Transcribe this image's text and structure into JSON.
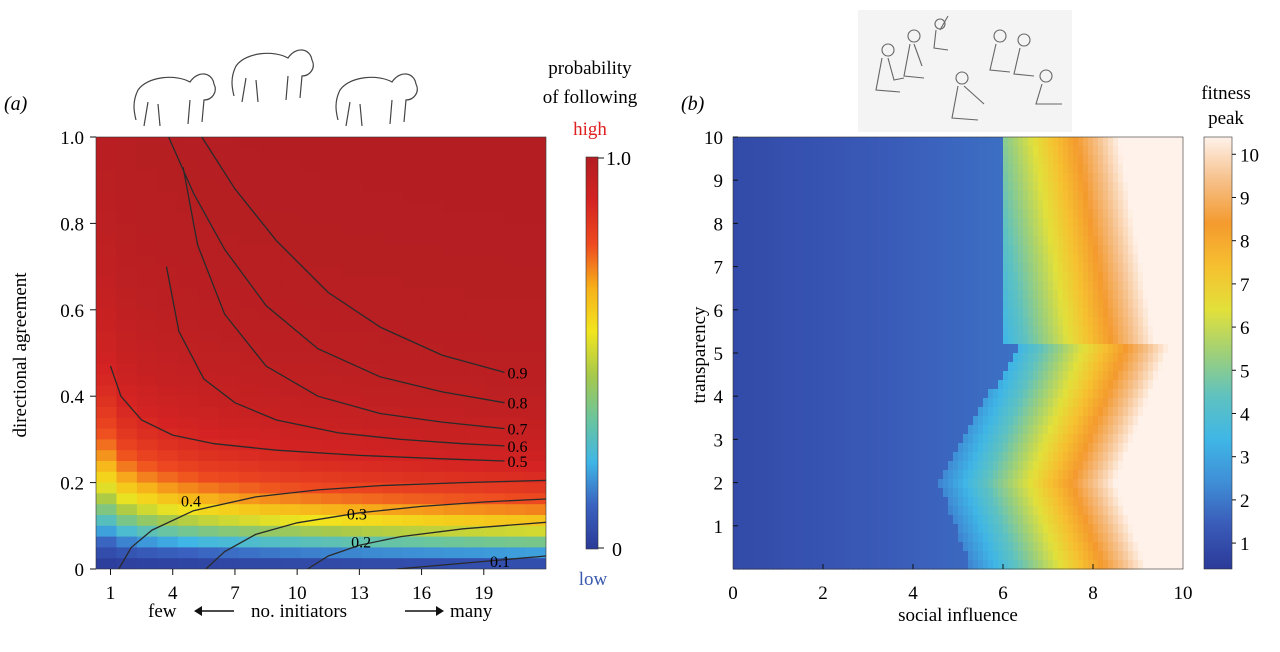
{
  "chart_data": [
    {
      "type": "heatmap",
      "panel_label": "(a)",
      "xlabel": "no. initiators",
      "xlabel_left": "few",
      "xlabel_right": "many",
      "ylabel": "directional agreement",
      "xlim": [
        0.3,
        22
      ],
      "ylim": [
        0,
        1
      ],
      "xticks": [
        1,
        4,
        7,
        10,
        13,
        16,
        19
      ],
      "yticks": [
        0,
        0.2,
        0.4,
        0.6,
        0.8,
        1.0
      ],
      "grid_columns": 22,
      "colorbar": {
        "title_line1": "probability",
        "title_line2": "of following",
        "high_label": "high",
        "low_label": "low",
        "max_label": "1.0",
        "min_label": "0",
        "range": [
          0,
          1
        ],
        "colors": [
          "#2b3a98",
          "#3a62c0",
          "#3fb6e6",
          "#6cc59c",
          "#a8c94a",
          "#f2e51e",
          "#f7b01a",
          "#ee4a20",
          "#d42322",
          "#b21e22"
        ],
        "high_color": "#e02020",
        "low_color": "#3a5ab0"
      },
      "contours": [
        {
          "level": 0.1,
          "label": "0.1",
          "points": [
            [
              14.8,
              0
            ],
            [
              22,
              0.03
            ]
          ]
        },
        {
          "level": 0.2,
          "label": "0.2",
          "points": [
            [
              10.5,
              0
            ],
            [
              11.5,
              0.03
            ],
            [
              13,
              0.055
            ],
            [
              15,
              0.075
            ],
            [
              18,
              0.093
            ],
            [
              22,
              0.108
            ]
          ]
        },
        {
          "level": 0.3,
          "label": "0.3",
          "points": [
            [
              5.6,
              0
            ],
            [
              6.5,
              0.04
            ],
            [
              8,
              0.08
            ],
            [
              10,
              0.107
            ],
            [
              13,
              0.13
            ],
            [
              16,
              0.145
            ],
            [
              19,
              0.155
            ],
            [
              22,
              0.162
            ]
          ]
        },
        {
          "level": 0.4,
          "label": "0.4",
          "points": [
            [
              1.4,
              0
            ],
            [
              2,
              0.05
            ],
            [
              3,
              0.09
            ],
            [
              5,
              0.135
            ],
            [
              8,
              0.167
            ],
            [
              11,
              0.183
            ],
            [
              14,
              0.193
            ],
            [
              18,
              0.2
            ],
            [
              22,
              0.205
            ]
          ]
        },
        {
          "level": 0.5,
          "label": "0.5",
          "points": [
            [
              1,
              0.47
            ],
            [
              1.5,
              0.4
            ],
            [
              2.5,
              0.345
            ],
            [
              4,
              0.31
            ],
            [
              6,
              0.29
            ],
            [
              9,
              0.275
            ],
            [
              13,
              0.263
            ],
            [
              17,
              0.255
            ],
            [
              20,
              0.25
            ]
          ]
        },
        {
          "level": 0.6,
          "label": "0.6",
          "points": [
            [
              3.7,
              0.7
            ],
            [
              4.3,
              0.55
            ],
            [
              5.5,
              0.44
            ],
            [
              7,
              0.385
            ],
            [
              9,
              0.345
            ],
            [
              12,
              0.315
            ],
            [
              15,
              0.3
            ],
            [
              18,
              0.29
            ],
            [
              20,
              0.285
            ]
          ]
        },
        {
          "level": 0.7,
          "label": "0.7",
          "points": [
            [
              4.5,
              0.93
            ],
            [
              5.2,
              0.75
            ],
            [
              6.5,
              0.59
            ],
            [
              8.5,
              0.47
            ],
            [
              11,
              0.4
            ],
            [
              14,
              0.36
            ],
            [
              17,
              0.34
            ],
            [
              20,
              0.325
            ]
          ]
        },
        {
          "level": 0.8,
          "label": "0.8",
          "points": [
            [
              3.8,
              1.0
            ],
            [
              5,
              0.87
            ],
            [
              6.5,
              0.74
            ],
            [
              8.5,
              0.61
            ],
            [
              11,
              0.51
            ],
            [
              14,
              0.445
            ],
            [
              17,
              0.41
            ],
            [
              20,
              0.385
            ]
          ]
        },
        {
          "level": 0.9,
          "label": "0.9",
          "points": [
            [
              5.4,
              1.0
            ],
            [
              7,
              0.88
            ],
            [
              9,
              0.76
            ],
            [
              11.5,
              0.64
            ],
            [
              14,
              0.56
            ],
            [
              17,
              0.495
            ],
            [
              20,
              0.455
            ]
          ]
        }
      ]
    },
    {
      "type": "heatmap",
      "panel_label": "(b)",
      "xlabel": "social influence",
      "ylabel": "transparency",
      "xlim": [
        0,
        10
      ],
      "ylim": [
        0,
        10
      ],
      "xticks": [
        0,
        2,
        4,
        6,
        8,
        10
      ],
      "yticks": [
        1,
        2,
        3,
        4,
        5,
        6,
        7,
        8,
        9,
        10
      ],
      "colorbar": {
        "title_line1": "fitness",
        "title_line2": "peak",
        "range": [
          0.4,
          10.4
        ],
        "ticks": [
          1,
          2,
          3,
          4,
          5,
          6,
          7,
          8,
          9,
          10
        ],
        "colors": [
          "#2b3a98",
          "#3a5ab8",
          "#3f8ed6",
          "#3fb6e6",
          "#5fc2c0",
          "#9fd078",
          "#e2e03a",
          "#f6c030",
          "#f49a2e",
          "#f6c08a",
          "#fff2ea"
        ]
      }
    }
  ]
}
